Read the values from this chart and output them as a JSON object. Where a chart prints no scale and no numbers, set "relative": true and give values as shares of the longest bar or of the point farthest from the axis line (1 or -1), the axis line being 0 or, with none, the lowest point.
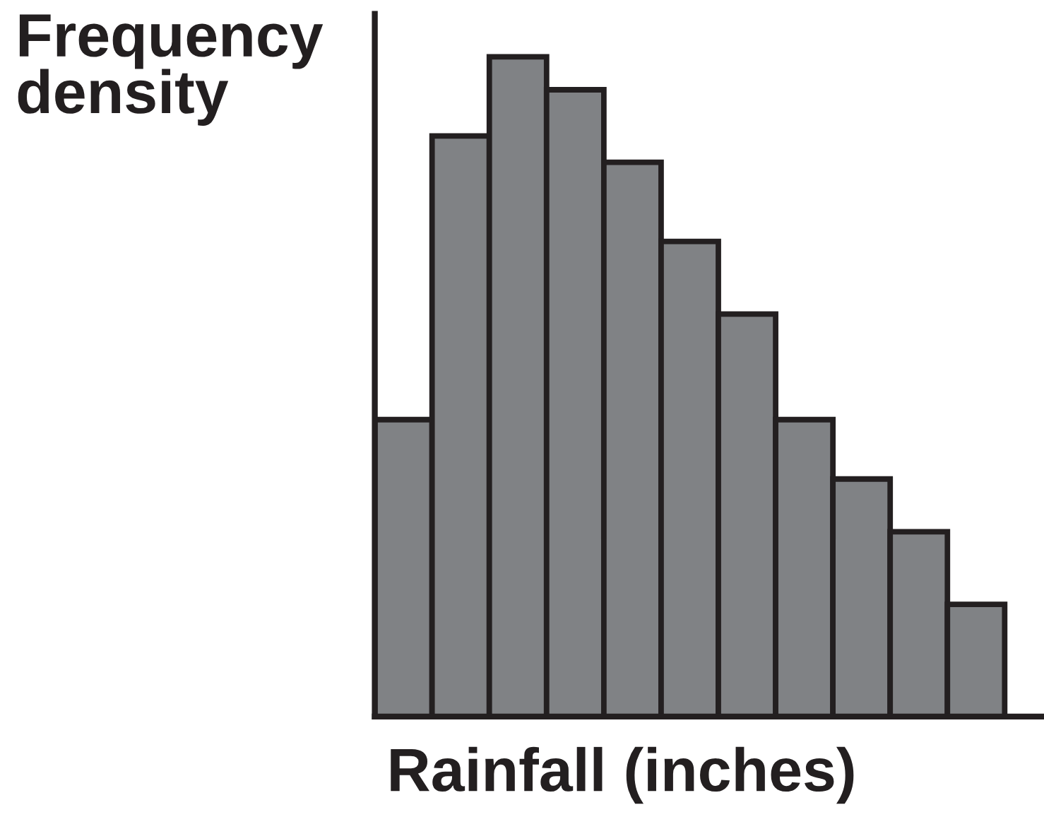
{
  "chart_data": {
    "type": "bar",
    "relative": true,
    "xlabel": "Rainfall (inches)",
    "ylabel": "Frequency\ndensity",
    "categories": [
      null,
      null,
      null,
      null,
      null,
      null,
      null,
      null,
      null,
      null,
      null
    ],
    "values": [
      0.45,
      0.88,
      1.0,
      0.95,
      0.84,
      0.72,
      0.61,
      0.45,
      0.36,
      0.28,
      0.17
    ],
    "color": "#808285",
    "grid": false,
    "legend": false
  }
}
